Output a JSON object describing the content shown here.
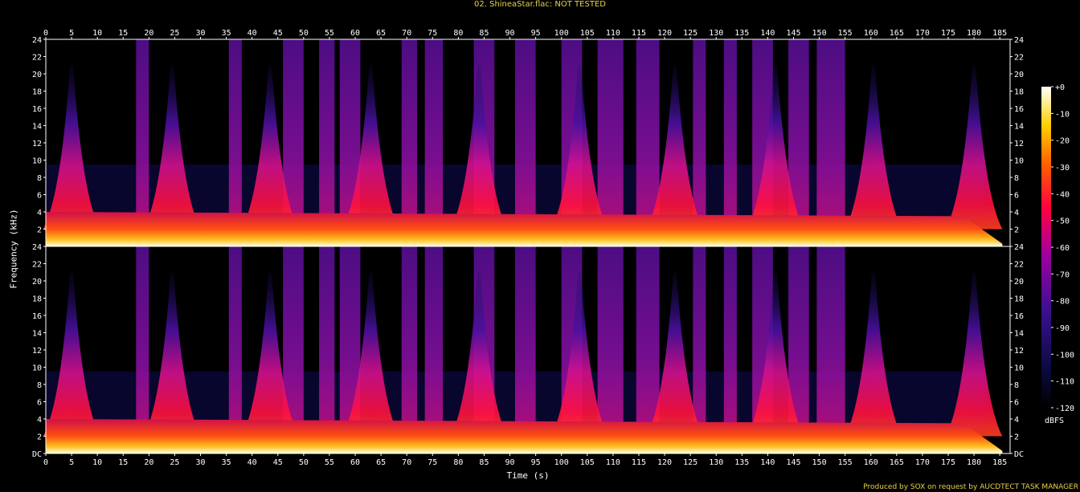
{
  "title": "02. ShineaStar.flac: NOT TESTED",
  "footer": "Produced by SOX on request by AUCDTECT TASK MANAGER",
  "colors": {
    "background": "#000000",
    "title": "#e8d24a",
    "axis": "#ffffff"
  },
  "chart_data": {
    "type": "heatmap",
    "title": "02. ShineaStar.flac: NOT TESTED",
    "xlabel": "Time (s)",
    "ylabel": "Frequency (kHz)",
    "xlim": [
      0,
      187
    ],
    "ylim": [
      0,
      24
    ],
    "x_ticks": [
      "0",
      "5",
      "10",
      "15",
      "20",
      "25",
      "30",
      "35",
      "40",
      "45",
      "50",
      "55",
      "60",
      "65",
      "70",
      "75",
      "80",
      "85",
      "90",
      "95",
      "100",
      "105",
      "110",
      "115",
      "120",
      "125",
      "130",
      "135",
      "140",
      "145",
      "150",
      "155",
      "160",
      "165",
      "170",
      "175",
      "180",
      "185"
    ],
    "y_ticks": [
      "DC",
      "2",
      "4",
      "6",
      "8",
      "10",
      "12",
      "14",
      "16",
      "18",
      "20",
      "22",
      "24"
    ],
    "channels": [
      "Channel 1",
      "Channel 2"
    ],
    "colorbar": {
      "unit": "dBFS",
      "range": [
        -120,
        0
      ],
      "ticks": [
        "+0",
        "-10",
        "-20",
        "-30",
        "-40",
        "-50",
        "-60",
        "-70",
        "-80",
        "-90",
        "-100",
        "-110",
        "-120"
      ]
    },
    "peaks_s": [
      5,
      24.5,
      43.5,
      63,
      84,
      103.5,
      122,
      141.5,
      160.5,
      180
    ],
    "broadband_bands_s": [
      [
        17.5,
        20
      ],
      [
        35.5,
        38
      ],
      [
        46,
        50
      ],
      [
        53,
        56
      ],
      [
        57,
        61
      ],
      [
        69,
        72
      ],
      [
        73.5,
        77
      ],
      [
        83,
        87
      ],
      [
        91,
        95
      ],
      [
        100,
        104
      ],
      [
        107,
        112
      ],
      [
        114.5,
        119
      ],
      [
        125.5,
        128
      ],
      [
        131.5,
        134
      ],
      [
        137,
        141
      ],
      [
        144,
        148
      ],
      [
        149.5,
        155
      ]
    ],
    "grid": false
  }
}
